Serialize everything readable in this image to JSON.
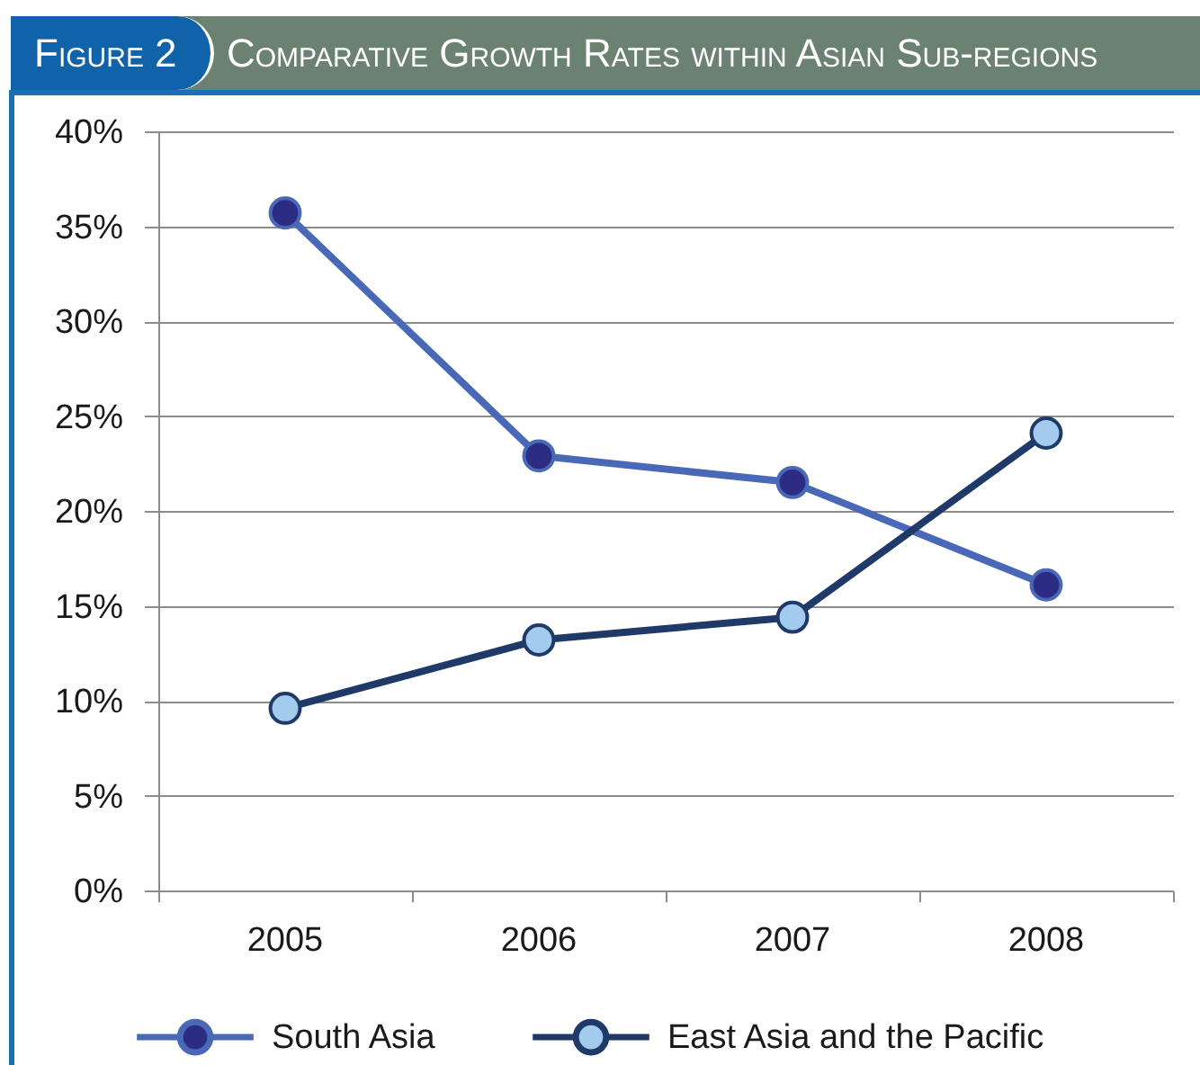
{
  "chart_data": {
    "type": "line",
    "title": "Comparative Growth Rates within Asian Sub-regions",
    "annotations": [
      "Figure 2"
    ],
    "categories": [
      "2005",
      "2006",
      "2007",
      "2008"
    ],
    "series": [
      {
        "name": "South Asia",
        "color": "#4a68b8",
        "colors": [
          "#2b2c82",
          "#2b2c82",
          "#2b2c82",
          "#2b2c82"
        ],
        "values": [
          35.7,
          22.9,
          21.5,
          16.1
        ]
      },
      {
        "name": "East Asia and the Pacific",
        "color": "#1f3968",
        "colors": [
          "#a3cbee",
          "#a3cbee",
          "#a3cbee",
          "#a3cbee"
        ],
        "values": [
          9.6,
          13.2,
          14.4,
          24.1
        ]
      }
    ],
    "ylim": [
      0,
      40
    ],
    "yticks": [
      {
        "value": 0,
        "label": "0%"
      },
      {
        "value": 5,
        "label": "5%"
      },
      {
        "value": 10,
        "label": "10%"
      },
      {
        "value": 15,
        "label": "15%"
      },
      {
        "value": 20,
        "label": "20%"
      },
      {
        "value": 25,
        "label": "25%"
      },
      {
        "value": 30,
        "label": "30%"
      },
      {
        "value": 35,
        "label": "35%"
      },
      {
        "value": 40,
        "label": "40%"
      }
    ],
    "grid": "y",
    "legend": "bottom",
    "marker": "circle",
    "line_style": "solid"
  }
}
